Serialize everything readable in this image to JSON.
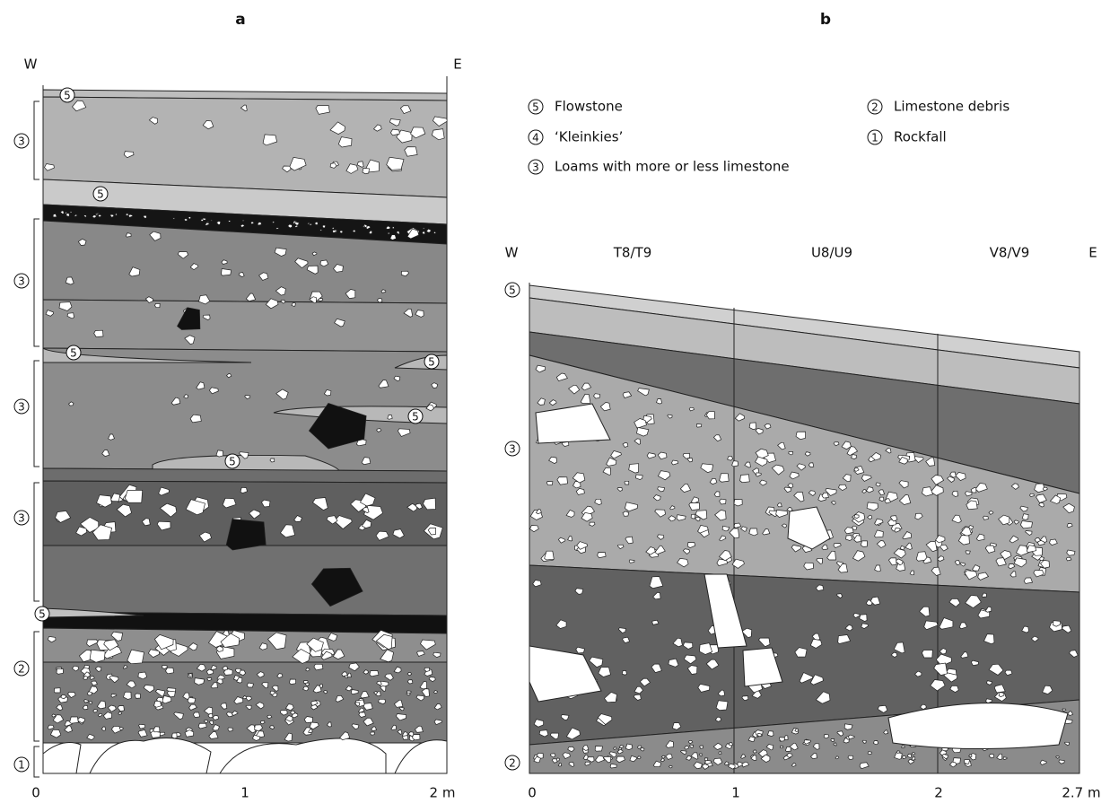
{
  "panel_a": {
    "label": "a",
    "west": "W",
    "east": "E",
    "bracket_labels": [
      "3",
      "3",
      "3",
      "3",
      "2",
      "1"
    ],
    "inner_labels": [
      "5",
      "5",
      "5",
      "5",
      "5",
      "5",
      "5"
    ],
    "axis_labels": [
      "0",
      "1",
      "2 m"
    ]
  },
  "panel_b": {
    "label": "b",
    "west": "W",
    "east": "E",
    "trenches": [
      "T8/T9",
      "U8/U9",
      "V8/V9"
    ],
    "layer_labels": [
      "5",
      "3",
      "2"
    ],
    "axis_labels": [
      "0",
      "1",
      "2",
      "2.7 m"
    ]
  },
  "legend": [
    {
      "symbol": "5",
      "text": "Flowstone"
    },
    {
      "symbol": "4",
      "text": "‘Kleinkies’"
    },
    {
      "symbol": "3",
      "text": "Loams with more or less limestone"
    },
    {
      "symbol": "2",
      "text": "Limestone debris"
    },
    {
      "symbol": "1",
      "text": "Rockfall"
    }
  ]
}
